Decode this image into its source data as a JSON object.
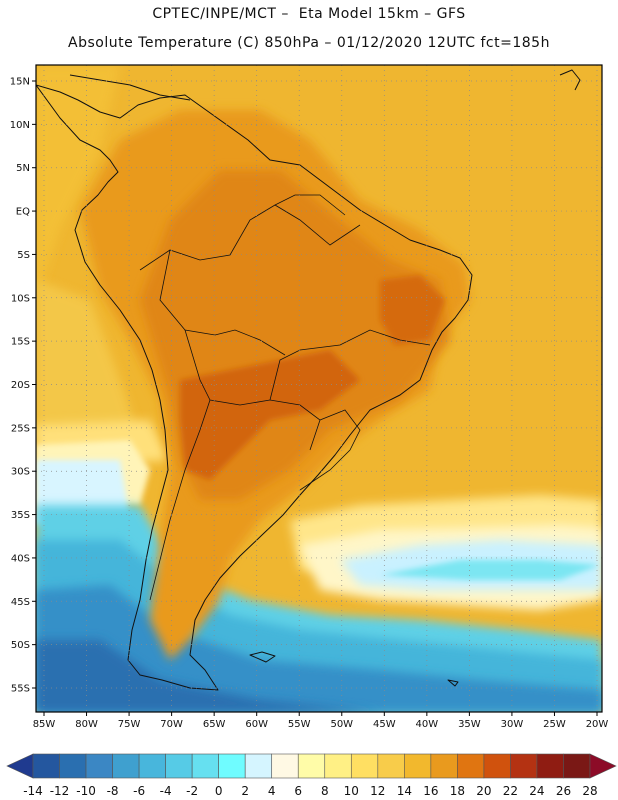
{
  "header": {
    "line1": "CPTEC/INPE/MCT –  Eta Model 15km – GFS",
    "line2": "Absolute Temperature (C) 850hPa – 01/12/2020 12UTC fct=185h"
  },
  "axes": {
    "lat_labels": [
      "15N",
      "10N",
      "5N",
      "EQ",
      "5S",
      "10S",
      "15S",
      "20S",
      "25S",
      "30S",
      "35S",
      "40S",
      "45S",
      "50S",
      "55S"
    ],
    "lon_labels": [
      "85W",
      "80W",
      "75W",
      "70W",
      "65W",
      "60W",
      "55W",
      "50W",
      "45W",
      "40W",
      "35W",
      "30W",
      "25W",
      "20W"
    ]
  },
  "colorbar": {
    "labels": [
      "-14",
      "-12",
      "-10",
      "-8",
      "-6",
      "-4",
      "-2",
      "0",
      "2",
      "4",
      "6",
      "8",
      "10",
      "12",
      "14",
      "16",
      "18",
      "20",
      "22",
      "24",
      "26",
      "28"
    ],
    "colors": [
      "#1f3a8f",
      "#24579f",
      "#2a6fb0",
      "#3b87c4",
      "#3fa0cf",
      "#48b6dc",
      "#56cbe6",
      "#66e0f0",
      "#6ffcff",
      "#d5f5ff",
      "#fff9e4",
      "#fffca8",
      "#fff085",
      "#ffdf62",
      "#f8cc4a",
      "#f2b82d",
      "#e99a1e",
      "#e07511",
      "#d0520d",
      "#b43212",
      "#8f1c12",
      "#7a1815",
      "#8c0b27"
    ]
  },
  "map": {
    "background_color": "#efb630"
  }
}
